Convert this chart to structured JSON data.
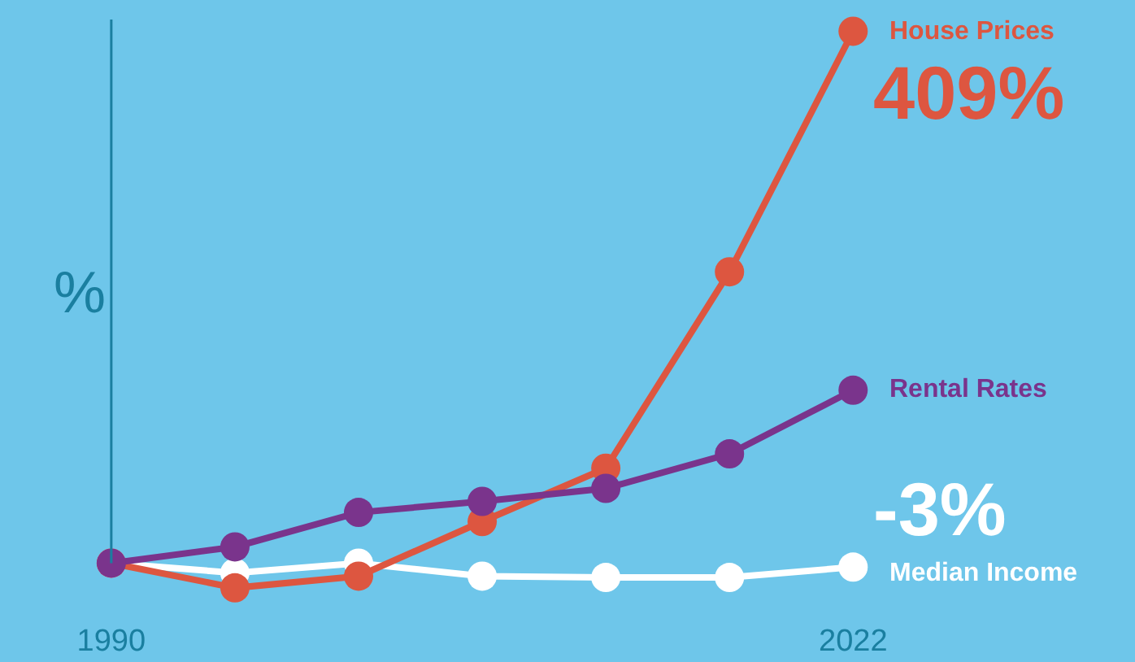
{
  "chart_data": {
    "type": "line",
    "ylabel": "%",
    "categories": [
      "1990",
      null,
      null,
      null,
      null,
      null,
      "2022"
    ],
    "ylim": [
      -76,
      433
    ],
    "tick_labels": "x",
    "grid": false,
    "legend": false,
    "marker": "circle",
    "line_style": "solid",
    "series": [
      {
        "name": "Median Income",
        "color": "#ffffff",
        "values": [
          0,
          -7.5,
          0,
          -10,
          -11,
          -11,
          -3
        ],
        "value_labels": [
          null,
          null,
          null,
          null,
          null,
          null,
          "-3%"
        ]
      },
      {
        "name": "House Prices",
        "color": "#dd5640",
        "values": [
          0,
          -19,
          -10,
          32,
          73,
          224,
          409
        ],
        "value_labels": [
          null,
          null,
          null,
          null,
          null,
          null,
          "409%"
        ]
      },
      {
        "name": "Rental Rates",
        "color": "#7a348c",
        "values": [
          0,
          12.5,
          39,
          47.5,
          57.5,
          84,
          133
        ]
      }
    ]
  }
}
